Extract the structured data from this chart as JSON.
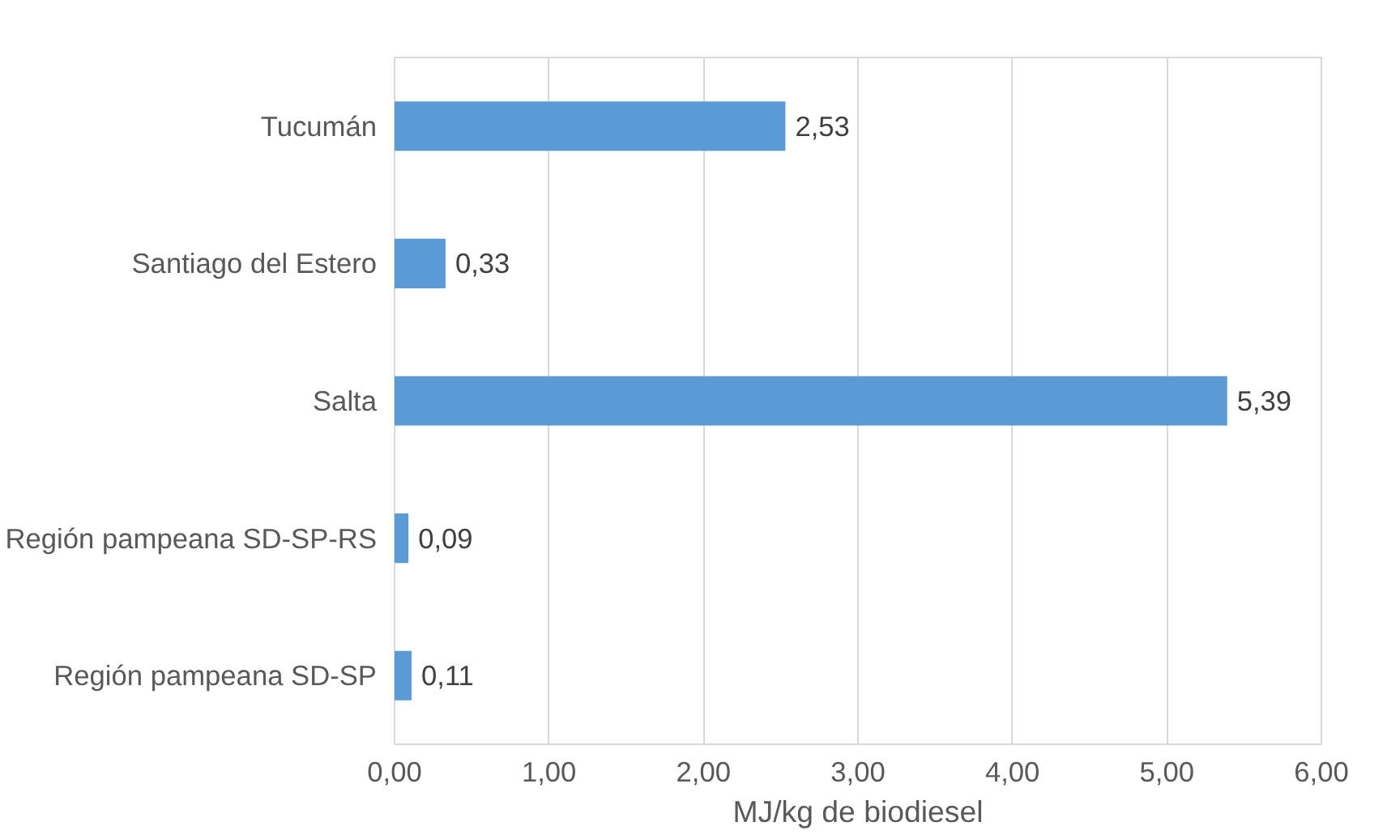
{
  "chart_data": {
    "type": "bar",
    "orientation": "horizontal",
    "xlabel": "MJ/kg de biodiesel",
    "categories": [
      "Tucumán",
      "Santiago del Estero",
      "Salta",
      "Región pampeana SD-SP-RS",
      "Región pampeana SD-SP"
    ],
    "values": [
      2.53,
      0.33,
      5.39,
      0.09,
      0.11
    ],
    "value_labels": [
      "2,53",
      "0,33",
      "5,39",
      "0,09",
      "0,11"
    ],
    "color": "#5b9bd5",
    "xlim": [
      0,
      6
    ],
    "xticks": [
      {
        "value": 0,
        "label": "0,00"
      },
      {
        "value": 1,
        "label": "1,00"
      },
      {
        "value": 2,
        "label": "2,00"
      },
      {
        "value": 3,
        "label": "3,00"
      },
      {
        "value": 4,
        "label": "4,00"
      },
      {
        "value": 5,
        "label": "5,00"
      },
      {
        "value": 6,
        "label": "6,00"
      }
    ],
    "grid": "x"
  }
}
